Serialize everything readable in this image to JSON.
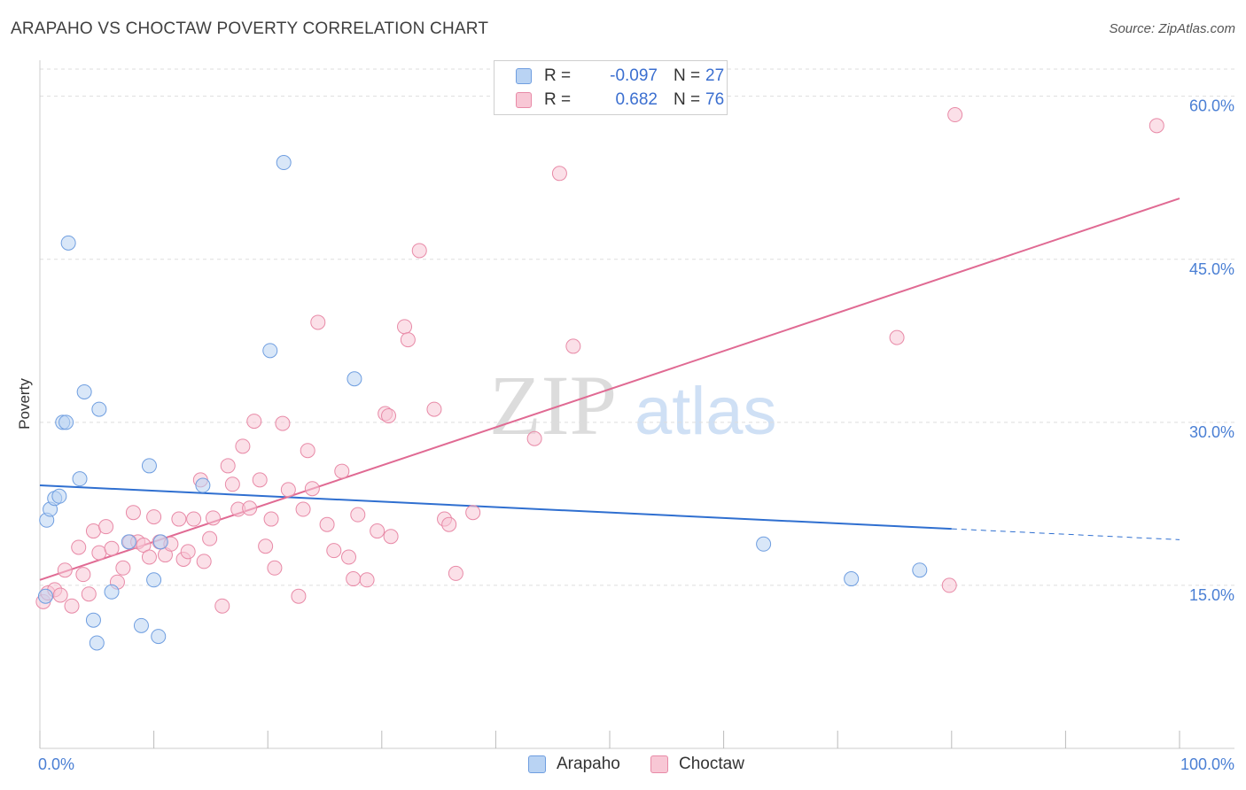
{
  "title": "ARAPAHO VS CHOCTAW POVERTY CORRELATION CHART",
  "source": "Source: ZipAtlas.com",
  "watermark": {
    "part1": "ZIP",
    "part2": "atlas"
  },
  "legend_top": {
    "rows": [
      {
        "r_label": "R =",
        "r_value": "-0.097",
        "n_label": "N =",
        "n_value": "27"
      },
      {
        "r_label": "R =",
        "r_value": "0.682",
        "n_label": "N =",
        "n_value": "76"
      }
    ]
  },
  "legend_bottom": [
    "Arapaho",
    "Choctaw"
  ],
  "colors": {
    "arapaho_fill": "#b9d3f3",
    "arapaho_stroke": "#6f9ee0",
    "arapaho_line": "#2f6fd0",
    "choctaw_fill": "#f8c7d5",
    "choctaw_stroke": "#e88aa7",
    "choctaw_line": "#e06a93",
    "axis_label": "#4a7fd4"
  },
  "chart_data": {
    "type": "scatter",
    "title": "ARAPAHO VS CHOCTAW POVERTY CORRELATION CHART",
    "xlabel": "",
    "ylabel": "Poverty",
    "xlim": [
      0,
      100
    ],
    "ylim": [
      0,
      62.5
    ],
    "x_tick_labels": [
      "0.0%",
      "100.0%"
    ],
    "y_ticks": [
      15,
      30,
      45,
      60
    ],
    "y_tick_labels": [
      "15.0%",
      "30.0%",
      "45.0%",
      "60.0%"
    ],
    "grid": "horizontal dashed",
    "legend_placement": "top-center",
    "series": [
      {
        "name": "Arapaho",
        "r": -0.097,
        "n": 27,
        "trend": {
          "x": [
            0,
            80
          ],
          "y": [
            24.2,
            20.2
          ],
          "dashed_extension_to": [
            100,
            19.2
          ]
        },
        "points": [
          [
            0.5,
            14.0
          ],
          [
            0.6,
            21.0
          ],
          [
            0.9,
            22.0
          ],
          [
            1.3,
            23.0
          ],
          [
            1.7,
            23.2
          ],
          [
            2.0,
            30.0
          ],
          [
            2.3,
            30.0
          ],
          [
            2.5,
            46.5
          ],
          [
            3.5,
            24.8
          ],
          [
            3.9,
            32.8
          ],
          [
            4.7,
            11.8
          ],
          [
            5.0,
            9.7
          ],
          [
            5.2,
            31.2
          ],
          [
            6.3,
            14.4
          ],
          [
            7.8,
            19.0
          ],
          [
            8.9,
            11.3
          ],
          [
            9.6,
            26.0
          ],
          [
            10.0,
            15.5
          ],
          [
            10.4,
            10.3
          ],
          [
            10.6,
            19.0
          ],
          [
            14.3,
            24.2
          ],
          [
            20.2,
            36.6
          ],
          [
            21.4,
            53.9
          ],
          [
            27.6,
            34.0
          ],
          [
            63.5,
            18.8
          ],
          [
            71.2,
            15.6
          ],
          [
            77.2,
            16.4
          ]
        ]
      },
      {
        "name": "Choctaw",
        "r": 0.682,
        "n": 76,
        "trend": {
          "x": [
            0,
            100
          ],
          "y": [
            15.5,
            50.6
          ]
        },
        "points": [
          [
            0.3,
            13.5
          ],
          [
            0.7,
            14.3
          ],
          [
            1.3,
            14.6
          ],
          [
            1.8,
            14.1
          ],
          [
            2.2,
            16.4
          ],
          [
            2.8,
            13.1
          ],
          [
            3.4,
            18.5
          ],
          [
            3.8,
            16.0
          ],
          [
            4.3,
            14.2
          ],
          [
            4.7,
            20.0
          ],
          [
            5.2,
            18.0
          ],
          [
            5.8,
            20.4
          ],
          [
            6.3,
            18.4
          ],
          [
            6.8,
            15.3
          ],
          [
            7.3,
            16.6
          ],
          [
            7.9,
            19.0
          ],
          [
            8.2,
            21.7
          ],
          [
            8.6,
            19.0
          ],
          [
            9.1,
            18.7
          ],
          [
            9.6,
            17.6
          ],
          [
            10.0,
            21.3
          ],
          [
            10.5,
            19.0
          ],
          [
            11.0,
            17.8
          ],
          [
            11.5,
            18.8
          ],
          [
            12.2,
            21.1
          ],
          [
            12.6,
            17.4
          ],
          [
            13.0,
            18.1
          ],
          [
            13.5,
            21.1
          ],
          [
            14.1,
            24.7
          ],
          [
            14.4,
            17.2
          ],
          [
            14.9,
            19.3
          ],
          [
            15.2,
            21.2
          ],
          [
            16.0,
            13.1
          ],
          [
            16.5,
            26.0
          ],
          [
            16.9,
            24.3
          ],
          [
            17.4,
            22.0
          ],
          [
            17.8,
            27.8
          ],
          [
            18.4,
            22.1
          ],
          [
            18.8,
            30.1
          ],
          [
            19.3,
            24.7
          ],
          [
            19.8,
            18.6
          ],
          [
            20.3,
            21.1
          ],
          [
            20.6,
            16.6
          ],
          [
            21.3,
            29.9
          ],
          [
            21.8,
            23.8
          ],
          [
            22.7,
            14.0
          ],
          [
            23.1,
            22.0
          ],
          [
            23.5,
            27.4
          ],
          [
            23.9,
            23.9
          ],
          [
            24.4,
            39.2
          ],
          [
            25.2,
            20.6
          ],
          [
            25.8,
            18.2
          ],
          [
            26.5,
            25.5
          ],
          [
            27.1,
            17.6
          ],
          [
            27.5,
            15.6
          ],
          [
            27.9,
            21.5
          ],
          [
            28.7,
            15.5
          ],
          [
            29.6,
            20.0
          ],
          [
            30.3,
            30.8
          ],
          [
            30.6,
            30.6
          ],
          [
            30.8,
            19.5
          ],
          [
            32.0,
            38.8
          ],
          [
            32.3,
            37.6
          ],
          [
            33.3,
            45.8
          ],
          [
            34.6,
            31.2
          ],
          [
            35.5,
            21.1
          ],
          [
            35.9,
            20.6
          ],
          [
            36.5,
            16.1
          ],
          [
            38.0,
            21.7
          ],
          [
            43.4,
            28.5
          ],
          [
            45.6,
            52.9
          ],
          [
            46.8,
            37.0
          ],
          [
            75.2,
            37.8
          ],
          [
            79.8,
            15.0
          ],
          [
            80.3,
            58.3
          ],
          [
            98.0,
            57.3
          ]
        ]
      }
    ]
  }
}
